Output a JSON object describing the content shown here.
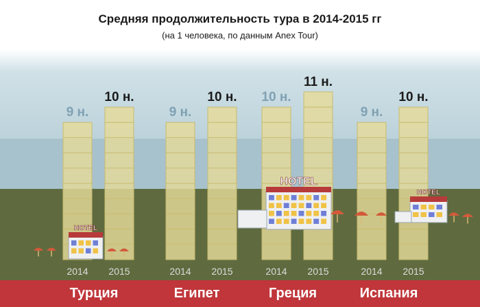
{
  "header": {
    "title": "Средняя продолжительность тура в 2014-2015 гг",
    "subtitle": "(на 1 человека, по данным Anex Tour)"
  },
  "chart_data": {
    "type": "bar",
    "title": "Средняя продолжительность тура в 2014-2015 гг",
    "subtitle": "(на 1 человека, по данным Anex Tour)",
    "unit": "н.",
    "categories": [
      "Турция",
      "Египет",
      "Греция",
      "Испания"
    ],
    "years": [
      "2014",
      "2015"
    ],
    "series": [
      {
        "name": "2014",
        "values": [
          9,
          9,
          10,
          9
        ],
        "labels": [
          "9 н.",
          "9 н.",
          "10 н.",
          "9 н."
        ]
      },
      {
        "name": "2015",
        "values": [
          10,
          10,
          11,
          10
        ],
        "labels": [
          "10 н.",
          "10 н.",
          "11 н.",
          "10 н."
        ]
      }
    ],
    "ylim": [
      0,
      11
    ],
    "grid": false,
    "decorations": {
      "hotel_sign": "HOTEL",
      "hotel_countries": [
        "Турция",
        "Греция",
        "Испания"
      ]
    },
    "colors": {
      "sky_top": "#b5cdd6",
      "sky_bottom": "#d9e6ea",
      "sea": "#a8c3ce",
      "ground": "#5f6b3f",
      "bar": "#e5da9a",
      "bar_stroke": "#c8bb6e",
      "label_2014": "#7fa1b3",
      "label_2015": "#1a1a1a",
      "country_band": "#c0363a"
    }
  }
}
